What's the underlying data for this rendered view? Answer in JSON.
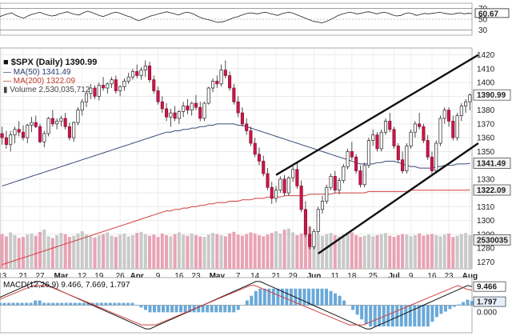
{
  "chart_data": {
    "type": "candlestick",
    "symbol": "$SPX (Daily)",
    "last": "1390.99",
    "price_axis": {
      "range": [
        1265,
        1425
      ],
      "ticks": [
        1270,
        1280,
        1290,
        1300,
        1310,
        1320,
        1330,
        1340,
        1350,
        1360,
        1370,
        1380,
        1390,
        1400,
        1410,
        1420
      ]
    },
    "price_tick_labels": [
      "1270",
      "1280",
      "1290",
      "1300",
      "1310",
      "1320",
      "1330",
      "1340",
      "1350",
      "1360",
      "1370",
      "1380",
      "1390",
      "1400",
      "1410",
      "1420"
    ],
    "x_tick_labels": [
      "13",
      "21",
      "27",
      "Mar",
      "12",
      "19",
      "26",
      "Apr",
      "9",
      "16",
      "23",
      "May",
      "7",
      "14",
      "21",
      "29",
      "Jun",
      "11",
      "18",
      "25",
      "Jul",
      "9",
      "16",
      "23",
      "Aug"
    ],
    "x_tick_bold": [
      false,
      false,
      false,
      true,
      false,
      false,
      false,
      true,
      false,
      false,
      false,
      true,
      false,
      false,
      false,
      false,
      true,
      false,
      false,
      false,
      true,
      false,
      false,
      false,
      true
    ],
    "legend": {
      "symbol_line": "■ $SPX (Daily) 1390.99",
      "ma50": "— MA(50) 1341.49",
      "ma200": "— MA(200) 1322.09",
      "volume": "▮ Volume 2,530,035,712"
    },
    "labels_right": {
      "last": "1390.99",
      "ma50": "1341.49",
      "ma200": "1322.09",
      "volume": "2530035"
    },
    "rsi": {
      "ticks": [
        "70",
        "60.67",
        "50",
        "30"
      ],
      "last": "60.67",
      "values": [
        55,
        58,
        60,
        62,
        57,
        54,
        52,
        56,
        59,
        61,
        63,
        60,
        58,
        56,
        57,
        60,
        62,
        64,
        61,
        59,
        58,
        62,
        65,
        63,
        60,
        57,
        55,
        58,
        61,
        63,
        62,
        59,
        56,
        54,
        50,
        47,
        50,
        53,
        56,
        58,
        60,
        62,
        64,
        62,
        60,
        58,
        61,
        63,
        62,
        59,
        55,
        52,
        50,
        48,
        46,
        44,
        45,
        47,
        50,
        53,
        55,
        58,
        60,
        62,
        61,
        60,
        62,
        63,
        61,
        59,
        57,
        60,
        62,
        63,
        61,
        58,
        55,
        52,
        49,
        46,
        45,
        43,
        45,
        48,
        52,
        56,
        59,
        61,
        63,
        62,
        60,
        61,
        63,
        64,
        62,
        60,
        62,
        63,
        61,
        58,
        56,
        57,
        60,
        62,
        60,
        57,
        59,
        61,
        60,
        61,
        62,
        63,
        61,
        60,
        59,
        61,
        62,
        60,
        61,
        60.67
      ]
    },
    "macd": {
      "label": "MACD(12,26,9) 9.466, 7.669, 1.797",
      "values": [
        "9.466",
        "7.669",
        "1.797"
      ],
      "zero_label": "0.000",
      "macd_line": [
        4,
        5,
        6,
        7,
        8,
        9,
        10,
        11,
        12,
        12,
        11,
        10,
        9,
        8,
        7,
        6,
        5,
        4,
        3,
        2,
        1,
        0,
        -1,
        -2,
        -3,
        -4,
        -5,
        -6,
        -7,
        -8,
        -9,
        -10,
        -11,
        -12,
        -12,
        -11,
        -10,
        -9,
        -8,
        -7,
        -6,
        -5,
        -4,
        -3,
        -2,
        -1,
        0,
        1,
        2,
        3,
        4,
        5,
        6,
        7,
        8,
        9,
        10,
        11,
        12,
        12,
        11,
        10,
        9,
        8,
        7,
        6,
        5,
        4,
        3,
        2,
        1,
        0,
        -1,
        -2,
        -3,
        -4,
        -5,
        -6,
        -7,
        -8,
        -9,
        -10,
        -11,
        -12,
        -12,
        -11,
        -10,
        -9,
        -8,
        -7,
        -6,
        -5,
        -4,
        -3,
        -2,
        -1,
        0,
        1,
        2,
        3,
        4,
        5,
        6,
        7,
        8,
        9,
        10,
        9.466
      ],
      "signal_line": [
        3,
        4,
        5,
        6,
        7,
        8,
        9,
        10,
        10,
        10,
        10,
        9,
        8,
        7,
        6,
        5,
        4,
        3,
        2,
        1,
        0,
        -1,
        -2,
        -3,
        -4,
        -5,
        -6,
        -7,
        -8,
        -9,
        -10,
        -10,
        -10,
        -10,
        -9,
        -8,
        -7,
        -6,
        -5,
        -4,
        -3,
        -2,
        -1,
        0,
        1,
        2,
        3,
        4,
        5,
        6,
        7,
        8,
        9,
        10,
        10,
        9,
        8,
        7,
        6,
        5,
        4,
        3,
        2,
        1,
        0,
        -1,
        -2,
        -3,
        -4,
        -5,
        -6,
        -7,
        -8,
        -9,
        -10,
        -10,
        -10,
        -10,
        -9,
        -8,
        -7,
        -6,
        -5,
        -4,
        -3,
        -2,
        -1,
        0,
        1,
        2,
        3,
        4,
        5,
        6,
        7,
        8,
        9,
        10,
        9,
        8,
        7.669
      ]
    },
    "candles": [
      [
        1363,
        1368,
        1355,
        1360
      ],
      [
        1360,
        1365,
        1352,
        1355
      ],
      [
        1355,
        1365,
        1350,
        1362
      ],
      [
        1362,
        1368,
        1356,
        1366
      ],
      [
        1366,
        1372,
        1361,
        1364
      ],
      [
        1364,
        1369,
        1358,
        1360
      ],
      [
        1360,
        1370,
        1356,
        1369
      ],
      [
        1369,
        1375,
        1364,
        1371
      ],
      [
        1371,
        1376,
        1367,
        1368
      ],
      [
        1368,
        1370,
        1356,
        1357
      ],
      [
        1357,
        1365,
        1353,
        1363
      ],
      [
        1363,
        1375,
        1361,
        1374
      ],
      [
        1374,
        1380,
        1368,
        1370
      ],
      [
        1370,
        1374,
        1366,
        1372
      ],
      [
        1372,
        1376,
        1368,
        1374
      ],
      [
        1374,
        1378,
        1366,
        1368
      ],
      [
        1368,
        1371,
        1358,
        1360
      ],
      [
        1360,
        1372,
        1357,
        1371
      ],
      [
        1371,
        1382,
        1369,
        1380
      ],
      [
        1380,
        1388,
        1376,
        1386
      ],
      [
        1386,
        1394,
        1382,
        1392
      ],
      [
        1392,
        1399,
        1388,
        1396
      ],
      [
        1396,
        1398,
        1388,
        1390
      ],
      [
        1390,
        1400,
        1387,
        1398
      ],
      [
        1398,
        1404,
        1394,
        1396
      ],
      [
        1396,
        1400,
        1392,
        1399
      ],
      [
        1399,
        1404,
        1396,
        1402
      ],
      [
        1402,
        1405,
        1392,
        1394
      ],
      [
        1394,
        1398,
        1390,
        1397
      ],
      [
        1397,
        1403,
        1394,
        1401
      ],
      [
        1401,
        1407,
        1399,
        1404
      ],
      [
        1404,
        1410,
        1402,
        1408
      ],
      [
        1408,
        1413,
        1403,
        1405
      ],
      [
        1405,
        1411,
        1402,
        1409
      ],
      [
        1409,
        1416,
        1404,
        1412
      ],
      [
        1412,
        1415,
        1400,
        1402
      ],
      [
        1402,
        1405,
        1392,
        1394
      ],
      [
        1394,
        1397,
        1384,
        1386
      ],
      [
        1386,
        1390,
        1378,
        1381
      ],
      [
        1381,
        1385,
        1372,
        1375
      ],
      [
        1375,
        1381,
        1368,
        1378
      ],
      [
        1378,
        1383,
        1372,
        1374
      ],
      [
        1374,
        1380,
        1370,
        1379
      ],
      [
        1379,
        1386,
        1375,
        1383
      ],
      [
        1383,
        1388,
        1377,
        1380
      ],
      [
        1380,
        1386,
        1376,
        1385
      ],
      [
        1385,
        1391,
        1380,
        1382
      ],
      [
        1382,
        1386,
        1372,
        1374
      ],
      [
        1374,
        1386,
        1372,
        1385
      ],
      [
        1385,
        1397,
        1384,
        1396
      ],
      [
        1396,
        1403,
        1393,
        1401
      ],
      [
        1401,
        1405,
        1396,
        1399
      ],
      [
        1399,
        1413,
        1397,
        1409
      ],
      [
        1409,
        1416,
        1403,
        1405
      ],
      [
        1405,
        1408,
        1394,
        1396
      ],
      [
        1396,
        1399,
        1384,
        1386
      ],
      [
        1386,
        1390,
        1375,
        1378
      ],
      [
        1378,
        1382,
        1368,
        1370
      ],
      [
        1370,
        1374,
        1362,
        1365
      ],
      [
        1365,
        1368,
        1354,
        1356
      ],
      [
        1356,
        1360,
        1346,
        1348
      ],
      [
        1348,
        1353,
        1340,
        1343
      ],
      [
        1343,
        1347,
        1332,
        1334
      ],
      [
        1334,
        1338,
        1322,
        1324
      ],
      [
        1324,
        1328,
        1312,
        1316
      ],
      [
        1316,
        1325,
        1313,
        1322
      ],
      [
        1322,
        1332,
        1320,
        1330
      ],
      [
        1330,
        1333,
        1318,
        1320
      ],
      [
        1320,
        1332,
        1318,
        1331
      ],
      [
        1331,
        1340,
        1328,
        1337
      ],
      [
        1337,
        1342,
        1323,
        1325
      ],
      [
        1325,
        1329,
        1306,
        1308
      ],
      [
        1308,
        1314,
        1288,
        1290
      ],
      [
        1290,
        1296,
        1279,
        1281
      ],
      [
        1281,
        1294,
        1279,
        1292
      ],
      [
        1292,
        1310,
        1290,
        1308
      ],
      [
        1308,
        1318,
        1305,
        1314
      ],
      [
        1314,
        1326,
        1312,
        1324
      ],
      [
        1324,
        1334,
        1322,
        1332
      ],
      [
        1332,
        1336,
        1320,
        1322
      ],
      [
        1322,
        1331,
        1319,
        1329
      ],
      [
        1329,
        1341,
        1327,
        1339
      ],
      [
        1339,
        1352,
        1337,
        1350
      ],
      [
        1350,
        1357,
        1344,
        1346
      ],
      [
        1346,
        1348,
        1334,
        1336
      ],
      [
        1336,
        1340,
        1324,
        1326
      ],
      [
        1326,
        1342,
        1324,
        1340
      ],
      [
        1340,
        1360,
        1338,
        1358
      ],
      [
        1358,
        1366,
        1354,
        1362
      ],
      [
        1362,
        1364,
        1350,
        1352
      ],
      [
        1352,
        1366,
        1350,
        1364
      ],
      [
        1364,
        1374,
        1362,
        1372
      ],
      [
        1372,
        1378,
        1364,
        1366
      ],
      [
        1366,
        1368,
        1352,
        1354
      ],
      [
        1354,
        1356,
        1342,
        1344
      ],
      [
        1344,
        1350,
        1334,
        1336
      ],
      [
        1336,
        1356,
        1334,
        1354
      ],
      [
        1354,
        1366,
        1352,
        1364
      ],
      [
        1364,
        1372,
        1360,
        1370
      ],
      [
        1370,
        1378,
        1366,
        1368
      ],
      [
        1368,
        1370,
        1356,
        1358
      ],
      [
        1358,
        1362,
        1344,
        1346
      ],
      [
        1346,
        1350,
        1332,
        1336
      ],
      [
        1336,
        1358,
        1334,
        1356
      ],
      [
        1356,
        1376,
        1354,
        1374
      ],
      [
        1374,
        1382,
        1370,
        1380
      ],
      [
        1380,
        1382,
        1368,
        1372
      ],
      [
        1372,
        1376,
        1358,
        1360
      ],
      [
        1360,
        1378,
        1358,
        1376
      ],
      [
        1376,
        1385,
        1372,
        1383
      ],
      [
        1383,
        1388,
        1378,
        1386
      ],
      [
        1386,
        1392,
        1380,
        1390.99
      ]
    ],
    "volume": [
      62,
      58,
      65,
      60,
      55,
      57,
      61,
      63,
      59,
      66,
      70,
      58,
      55,
      60,
      64,
      62,
      57,
      59,
      63,
      67,
      61,
      58,
      56,
      60,
      62,
      65,
      59,
      57,
      61,
      63,
      58,
      60,
      64,
      66,
      62,
      59,
      61,
      57,
      63,
      60,
      58,
      62,
      65,
      61,
      59,
      63,
      60,
      58,
      57,
      61,
      64,
      62,
      60,
      58,
      63,
      66,
      61,
      59,
      62,
      65,
      63,
      60,
      58,
      61,
      64,
      67,
      63,
      70,
      72,
      65,
      60,
      63,
      68,
      75,
      66,
      61,
      59,
      62,
      64,
      60,
      58,
      61,
      63,
      65,
      60,
      57,
      59,
      61,
      58,
      60,
      62,
      64,
      59,
      57,
      60,
      62,
      61,
      58,
      60,
      63,
      59,
      61,
      62,
      60,
      58,
      61,
      63,
      57,
      59,
      62,
      64,
      60
    ],
    "ma50": [
      1325,
      1326,
      1327,
      1328,
      1329,
      1330,
      1331,
      1332,
      1333,
      1334,
      1335,
      1336,
      1337,
      1338,
      1339,
      1340,
      1341,
      1342,
      1343,
      1344,
      1345,
      1346,
      1347,
      1348,
      1349,
      1350,
      1351,
      1352,
      1353,
      1354,
      1355,
      1356,
      1357,
      1358,
      1359,
      1360,
      1361,
      1362,
      1363,
      1364,
      1364,
      1365,
      1365,
      1366,
      1366,
      1367,
      1367,
      1368,
      1368,
      1369,
      1369,
      1370,
      1370,
      1370,
      1370,
      1370,
      1369,
      1369,
      1368,
      1367,
      1366,
      1365,
      1364,
      1363,
      1362,
      1361,
      1360,
      1359,
      1358,
      1357,
      1356,
      1355,
      1354,
      1353,
      1352,
      1351,
      1350,
      1349,
      1348,
      1347,
      1346,
      1345,
      1344,
      1343,
      1342,
      1341,
      1341,
      1341,
      1341,
      1342,
      1342,
      1343,
      1343,
      1343,
      1342,
      1341,
      1340,
      1339,
      1339,
      1338,
      1338,
      1338,
      1338,
      1339,
      1339,
      1340,
      1340,
      1340,
      1341,
      1341,
      1341,
      1341.49
    ],
    "ma200": [
      1268,
      1269,
      1270,
      1271,
      1272,
      1273,
      1274,
      1275,
      1276,
      1277,
      1278,
      1279,
      1280,
      1281,
      1282,
      1283,
      1284,
      1285,
      1286,
      1287,
      1288,
      1289,
      1290,
      1291,
      1292,
      1293,
      1294,
      1295,
      1296,
      1297,
      1298,
      1299,
      1300,
      1301,
      1302,
      1303,
      1304,
      1305,
      1306,
      1307,
      1307,
      1308,
      1308,
      1309,
      1309,
      1310,
      1310,
      1311,
      1311,
      1312,
      1312,
      1313,
      1313,
      1313,
      1314,
      1314,
      1314,
      1315,
      1315,
      1315,
      1316,
      1316,
      1316,
      1317,
      1317,
      1317,
      1317,
      1318,
      1318,
      1318,
      1318,
      1318,
      1318,
      1319,
      1319,
      1319,
      1319,
      1319,
      1319,
      1320,
      1320,
      1320,
      1320,
      1320,
      1320,
      1320,
      1320,
      1321,
      1321,
      1321,
      1321,
      1321,
      1321,
      1321,
      1321,
      1321,
      1321,
      1322,
      1322,
      1322,
      1322,
      1322,
      1322,
      1322,
      1322,
      1322,
      1322,
      1322,
      1322,
      1322,
      1322,
      1322.09
    ],
    "channel": {
      "upper": {
        "from": [
          1333,
          65
        ],
        "to": [
          1420,
          113
        ]
      },
      "lower": {
        "from": [
          1276,
          75
        ],
        "to": [
          1356,
          113
        ]
      }
    }
  }
}
